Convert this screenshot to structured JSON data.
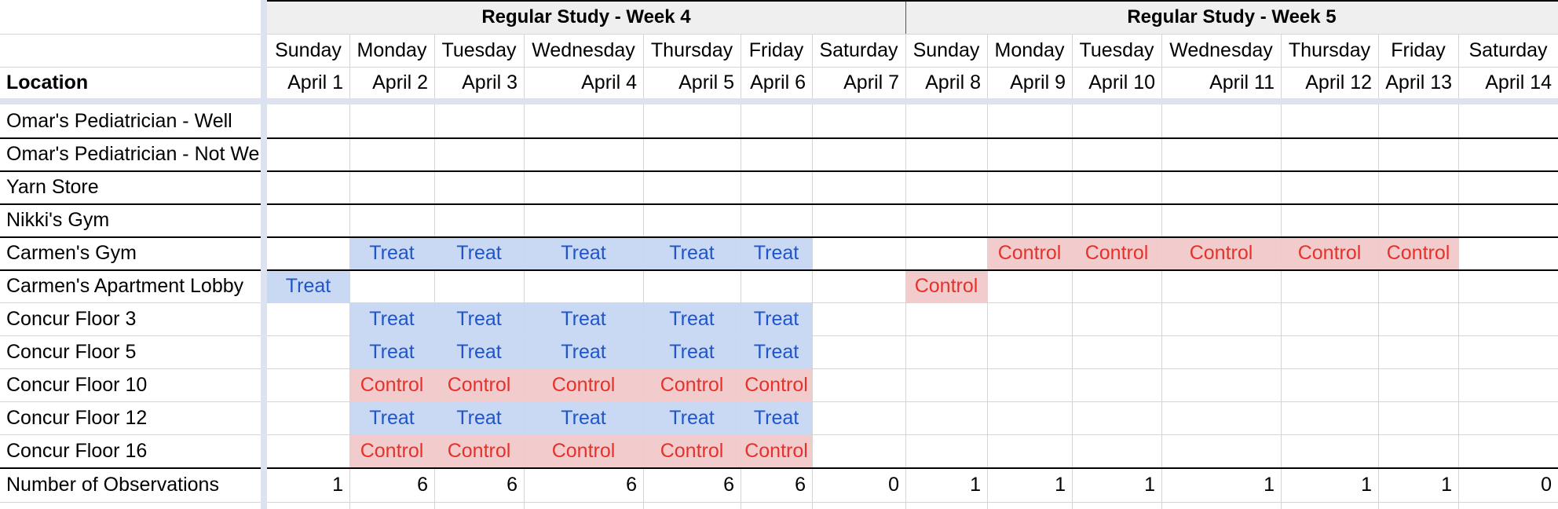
{
  "location_header": "Location",
  "weeks": [
    "Regular Study - Week 4",
    "Regular Study - Week 5"
  ],
  "days": [
    {
      "dow": "Sunday",
      "date": "April 1"
    },
    {
      "dow": "Monday",
      "date": "April 2"
    },
    {
      "dow": "Tuesday",
      "date": "April 3"
    },
    {
      "dow": "Wednesday",
      "date": "April 4"
    },
    {
      "dow": "Thursday",
      "date": "April 5"
    },
    {
      "dow": "Friday",
      "date": "April 6"
    },
    {
      "dow": "Saturday",
      "date": "April 7"
    },
    {
      "dow": "Sunday",
      "date": "April 8"
    },
    {
      "dow": "Monday",
      "date": "April 9"
    },
    {
      "dow": "Tuesday",
      "date": "April 10"
    },
    {
      "dow": "Wednesday",
      "date": "April 11"
    },
    {
      "dow": "Thursday",
      "date": "April 12"
    },
    {
      "dow": "Friday",
      "date": "April 13"
    },
    {
      "dow": "Saturday",
      "date": "April 14"
    }
  ],
  "rows": [
    {
      "label": "Omar's Pediatrician - Well",
      "cells": [
        "",
        "",
        "",
        "",
        "",
        "",
        "",
        "",
        "",
        "",
        "",
        "",
        "",
        ""
      ]
    },
    {
      "label": "Omar's Pediatrician - Not We",
      "cells": [
        "",
        "",
        "",
        "",
        "",
        "",
        "",
        "",
        "",
        "",
        "",
        "",
        "",
        ""
      ]
    },
    {
      "label": "Yarn Store",
      "cells": [
        "",
        "",
        "",
        "",
        "",
        "",
        "",
        "",
        "",
        "",
        "",
        "",
        "",
        ""
      ]
    },
    {
      "label": "Nikki's Gym",
      "cells": [
        "",
        "",
        "",
        "",
        "",
        "",
        "",
        "",
        "",
        "",
        "",
        "",
        "",
        ""
      ]
    },
    {
      "label": "Carmen's Gym",
      "cells": [
        "",
        "Treat",
        "Treat",
        "Treat",
        "Treat",
        "Treat",
        "",
        "",
        "Control",
        "Control",
        "Control",
        "Control",
        "Control",
        ""
      ]
    },
    {
      "label": "Carmen's Apartment Lobby",
      "cells": [
        "Treat",
        "",
        "",
        "",
        "",
        "",
        "",
        "Control",
        "",
        "",
        "",
        "",
        "",
        ""
      ]
    },
    {
      "label": "Concur Floor 3",
      "cells": [
        "",
        "Treat",
        "Treat",
        "Treat",
        "Treat",
        "Treat",
        "",
        "",
        "",
        "",
        "",
        "",
        "",
        ""
      ]
    },
    {
      "label": "Concur Floor 5",
      "cells": [
        "",
        "Treat",
        "Treat",
        "Treat",
        "Treat",
        "Treat",
        "",
        "",
        "",
        "",
        "",
        "",
        "",
        ""
      ]
    },
    {
      "label": "Concur Floor 10",
      "cells": [
        "",
        "Control",
        "Control",
        "Control",
        "Control",
        "Control",
        "",
        "",
        "",
        "",
        "",
        "",
        "",
        ""
      ]
    },
    {
      "label": "Concur Floor 12",
      "cells": [
        "",
        "Treat",
        "Treat",
        "Treat",
        "Treat",
        "Treat",
        "",
        "",
        "",
        "",
        "",
        "",
        "",
        ""
      ]
    },
    {
      "label": "Concur Floor 16",
      "cells": [
        "",
        "Control",
        "Control",
        "Control",
        "Control",
        "Control",
        "",
        "",
        "",
        "",
        "",
        "",
        "",
        ""
      ]
    }
  ],
  "totals": {
    "label": "Number of Observations",
    "values": [
      "1",
      "6",
      "6",
      "6",
      "6",
      "6",
      "0",
      "1",
      "1",
      "1",
      "1",
      "1",
      "1",
      "0"
    ]
  },
  "colors": {
    "treat_bg": "#c9d9f3",
    "treat_text": "#1f55c9",
    "control_bg": "#f2cccc",
    "control_text": "#e8302a",
    "week_header_bg": "#efefef",
    "frozen_divider": "#dce3ee"
  }
}
